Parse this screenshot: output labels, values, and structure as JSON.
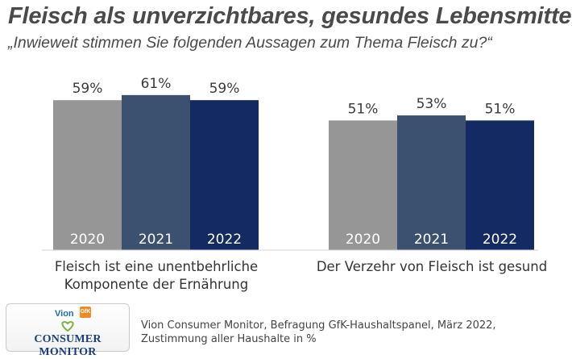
{
  "title": "Fleisch als unverzichtbares, gesundes Lebensmittel",
  "subtitle": "„Inwieweit stimmen Sie folgenden Aussagen zum Thema Fleisch zu?“",
  "colors": {
    "2020": "#969696",
    "2021": "#3c5070",
    "2022": "#142a62"
  },
  "chart_data": {
    "type": "bar",
    "title": "Fleisch als unverzichtbares, gesundes Lebensmittel",
    "categories": [
      "Fleisch ist eine unentbehrliche Komponente der Ernährung",
      "Der Verzehr von Fleisch ist gesund"
    ],
    "category_lines": [
      [
        "Fleisch ist eine unentbehrliche",
        "Komponente der Ernährung"
      ],
      [
        "Der Verzehr von Fleisch ist gesund"
      ]
    ],
    "series": [
      {
        "name": "2020",
        "values": [
          59,
          51
        ],
        "labels": [
          "59%",
          "51%"
        ]
      },
      {
        "name": "2021",
        "values": [
          61,
          53
        ],
        "labels": [
          "61%",
          "53%"
        ]
      },
      {
        "name": "2022",
        "values": [
          59,
          51
        ],
        "labels": [
          "59%",
          "51%"
        ]
      }
    ],
    "ylim": [
      0,
      100
    ],
    "xlabel": "",
    "ylabel": "",
    "legend": "in-bar"
  },
  "footer": {
    "line1": "Vion Consumer Monitor, Befragung GfK-Haushaltspanel, März 2022,",
    "line2": "Zustimmung aller Haushalte in %"
  },
  "logo": {
    "brand": "Vion",
    "partner": "GfK",
    "name": "CONSUMER MONITOR"
  }
}
